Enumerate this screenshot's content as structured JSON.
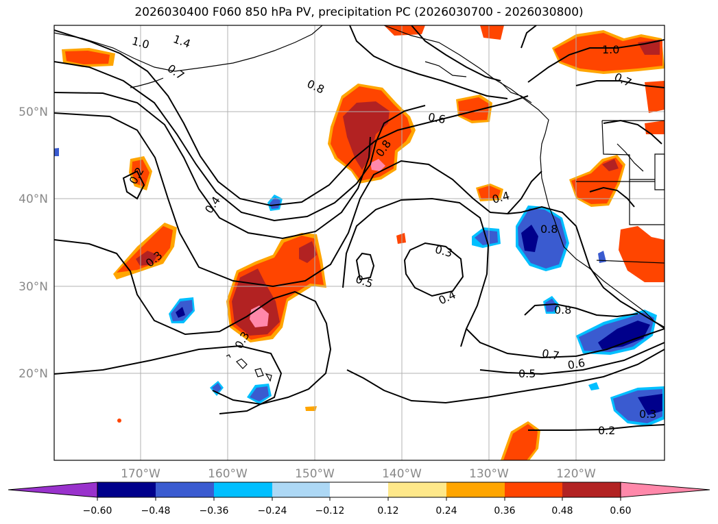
{
  "title": "2026030400 F060 850 hPa PV, precipitation PC (2026030700 - 2026030800)",
  "latitude_labels": [
    "50°N",
    "40°N",
    "30°N",
    "20°N"
  ],
  "longitude_labels": [
    "170°W",
    "160°W",
    "150°W",
    "140°W",
    "130°W",
    "120°W"
  ],
  "colorbar": {
    "tick_labels": [
      "−0.60",
      "−0.48",
      "−0.36",
      "−0.24",
      "−0.12",
      "0.12",
      "0.24",
      "0.36",
      "0.48",
      "0.60"
    ],
    "colors": [
      "#9932cc",
      "#00008b",
      "#3a5bd0",
      "#00bfff",
      "#add8f5",
      "#ffffff",
      "#fee88a",
      "#ffa500",
      "#ff4500",
      "#b22222",
      "#ff88aa"
    ]
  },
  "contour_labels": [
    "1.0",
    "1.4",
    "0.7",
    "0.8",
    "0.6",
    "0.2",
    "0.4",
    "0.3",
    "0.5",
    "0.8",
    "0.4",
    "0.3",
    "0.4",
    "0.8",
    "0.7",
    "0.6",
    "0.5",
    "0.2",
    "0.3",
    "1.0",
    "0.7",
    "0.3",
    "0.8"
  ],
  "palette": {
    "land": "#000000",
    "grid": "#b0b0b0"
  }
}
